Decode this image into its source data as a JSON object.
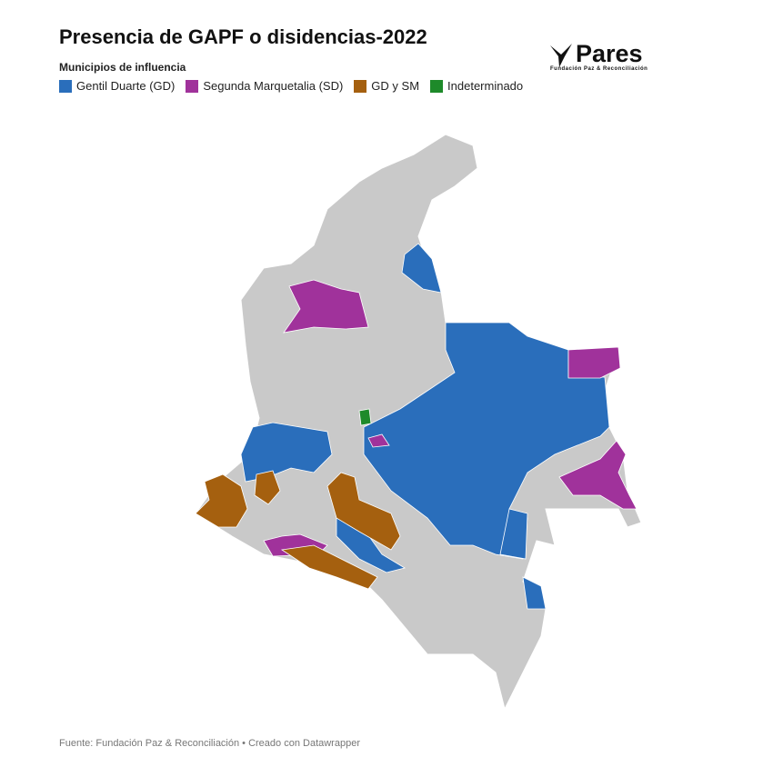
{
  "header": {
    "title": "Presencia de GAPF o disidencias-2022",
    "logo": {
      "name": "Pares",
      "tagline": "Fundación Paz & Reconciliación"
    }
  },
  "legend": {
    "title": "Municipios de influencia",
    "items": [
      {
        "label": "Gentil Duarte (GD)",
        "color": "#2a6ebb"
      },
      {
        "label": "Segunda Marquetalia (SD)",
        "color": "#a0329b"
      },
      {
        "label": "GD y SM",
        "color": "#a5600f"
      },
      {
        "label": "Indeterminado",
        "color": "#1e8a2a"
      }
    ]
  },
  "footer": {
    "source": "Fuente: Fundación Paz & Reconciliación • Creado con Datawrapper"
  }
}
